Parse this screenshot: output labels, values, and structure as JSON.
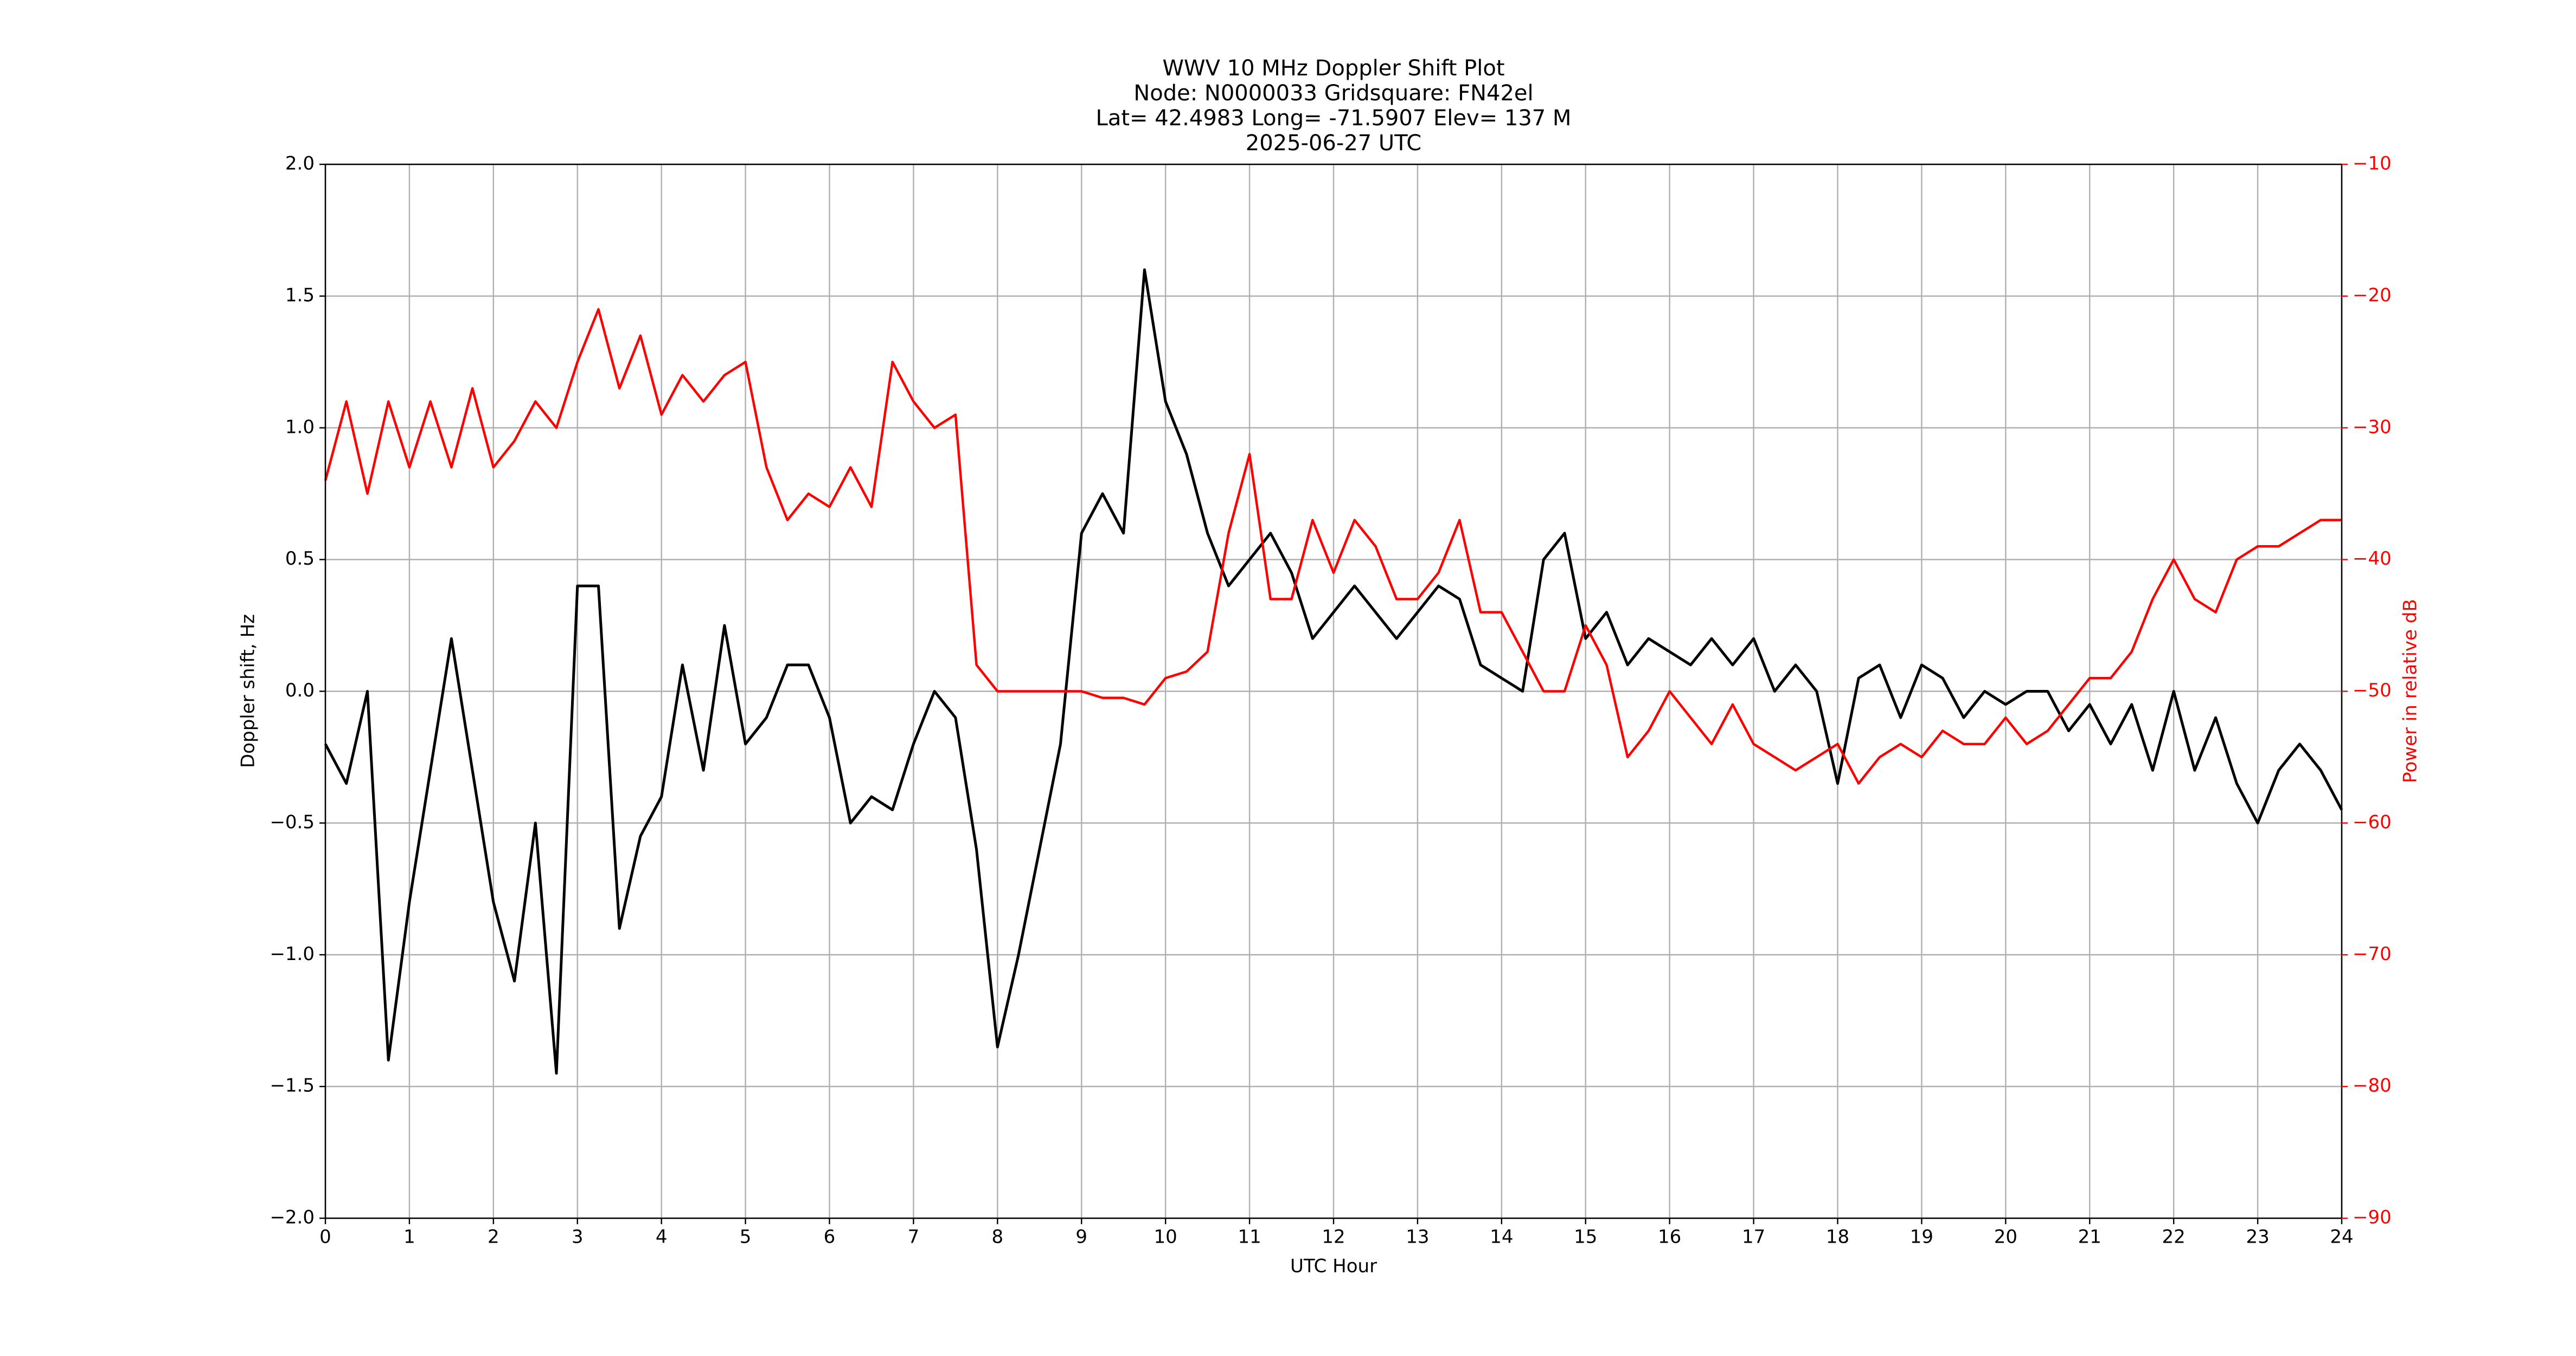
{
  "chart_data": {
    "type": "line",
    "title": [
      "WWV 10 MHz Doppler Shift Plot",
      "Node:  N0000033     Gridsquare:  FN42el",
      "Lat= 42.4983    Long= -71.5907    Elev= 137 M",
      "2025-06-27  UTC"
    ],
    "x_label": "UTC Hour",
    "y_label": "Doppler shift, Hz",
    "y2_label": "Power in relative dB",
    "x": [
      0,
      0.25,
      0.5,
      0.75,
      1,
      1.25,
      1.5,
      1.75,
      2,
      2.25,
      2.5,
      2.75,
      3,
      3.25,
      3.5,
      3.75,
      4,
      4.25,
      4.5,
      4.75,
      5,
      5.25,
      5.5,
      5.75,
      6,
      6.25,
      6.5,
      6.75,
      7,
      7.25,
      7.5,
      7.75,
      8,
      8.25,
      8.5,
      8.75,
      9,
      9.25,
      9.5,
      9.75,
      10,
      10.25,
      10.5,
      10.75,
      11,
      11.25,
      11.5,
      11.75,
      12,
      12.25,
      12.5,
      12.75,
      13,
      13.25,
      13.5,
      13.75,
      14,
      14.25,
      14.5,
      14.75,
      15,
      15.25,
      15.5,
      15.75,
      16,
      16.25,
      16.5,
      16.75,
      17,
      17.25,
      17.5,
      17.75,
      18,
      18.25,
      18.5,
      18.75,
      19,
      19.25,
      19.5,
      19.75,
      20,
      20.25,
      20.5,
      20.75,
      21,
      21.25,
      21.5,
      21.75,
      22,
      22.25,
      22.5,
      22.75,
      23,
      23.25,
      23.5,
      23.75,
      24
    ],
    "series": [
      {
        "name": "Doppler shift",
        "color": "#000000",
        "values": [
          -0.2,
          -0.35,
          0.0,
          -1.4,
          -0.8,
          -0.3,
          0.2,
          -0.3,
          -0.8,
          -1.1,
          -0.5,
          -1.45,
          0.4,
          0.4,
          -0.9,
          -0.55,
          -0.4,
          0.1,
          -0.3,
          0.25,
          -0.2,
          -0.1,
          0.1,
          0.1,
          -0.1,
          -0.5,
          -0.4,
          -0.45,
          -0.2,
          0.0,
          -0.1,
          -0.6,
          -1.35,
          -1.0,
          -0.6,
          -0.2,
          0.6,
          0.75,
          0.6,
          1.6,
          1.1,
          0.9,
          0.6,
          0.4,
          0.5,
          0.6,
          0.45,
          0.2,
          0.3,
          0.4,
          0.3,
          0.2,
          0.3,
          0.4,
          0.35,
          0.1,
          0.05,
          0.0,
          0.5,
          0.6,
          0.2,
          0.3,
          0.1,
          0.2,
          0.15,
          0.1,
          0.2,
          0.1,
          0.2,
          0.0,
          0.1,
          0.0,
          -0.35,
          0.05,
          0.1,
          -0.1,
          0.1,
          0.05,
          -0.1,
          0.0,
          -0.05,
          0.0,
          0.0,
          -0.15,
          -0.05,
          -0.2,
          -0.05,
          -0.3,
          0.0,
          -0.3,
          -0.1,
          -0.35,
          -0.5,
          -0.3,
          -0.2,
          -0.3,
          -0.45
        ]
      },
      {
        "name": "Power",
        "color": "#ff0000",
        "axis": "y2",
        "values": [
          -34,
          -28,
          -35,
          -28,
          -33,
          -28,
          -33,
          -27,
          -33,
          -31,
          -28,
          -30,
          -25,
          -21,
          -27,
          -23,
          -29,
          -26,
          -28,
          -26,
          -25,
          -33,
          -37,
          -35,
          -36,
          -33,
          -36,
          -25,
          -28,
          -30,
          -29,
          -48,
          -50,
          -50,
          -50,
          -50,
          -50,
          -50.5,
          -50.5,
          -51,
          -49,
          -48.5,
          -47,
          -38,
          -32,
          -43,
          -43,
          -37,
          -41,
          -37,
          -39,
          -43,
          -43,
          -41,
          -37,
          -44,
          -44,
          -47,
          -50,
          -50,
          -45,
          -48,
          -55,
          -53,
          -50,
          -52,
          -54,
          -51,
          -54,
          -55,
          -56,
          -55,
          -54,
          -57,
          -55,
          -54,
          -55,
          -53,
          -54,
          -54,
          -52,
          -54,
          -53,
          -51,
          -49,
          -49,
          -47,
          -43,
          -40,
          -43,
          -44,
          -40,
          -39,
          -39,
          -38,
          -37,
          -37
        ]
      }
    ],
    "xlim": [
      0,
      24
    ],
    "xticks": [
      0,
      1,
      2,
      3,
      4,
      5,
      6,
      7,
      8,
      9,
      10,
      11,
      12,
      13,
      14,
      15,
      16,
      17,
      18,
      19,
      20,
      21,
      22,
      23,
      24
    ],
    "ylim": [
      -2,
      2
    ],
    "yticks": [
      {
        "value": -2,
        "label": "−2.0"
      },
      {
        "value": -1.5,
        "label": "−1.5"
      },
      {
        "value": -1,
        "label": "−1.0"
      },
      {
        "value": -0.5,
        "label": "−0.5"
      },
      {
        "value": 0,
        "label": "0.0"
      },
      {
        "value": 0.5,
        "label": "0.5"
      },
      {
        "value": 1,
        "label": "1.0"
      },
      {
        "value": 1.5,
        "label": "1.5"
      },
      {
        "value": 2,
        "label": "2.0"
      }
    ],
    "y2lim": [
      -90,
      -10
    ],
    "y2ticks": [
      {
        "value": -90,
        "label": "−90"
      },
      {
        "value": -80,
        "label": "−80"
      },
      {
        "value": -70,
        "label": "−70"
      },
      {
        "value": -60,
        "label": "−60"
      },
      {
        "value": -50,
        "label": "−50"
      },
      {
        "value": -40,
        "label": "−40"
      },
      {
        "value": -30,
        "label": "−30"
      },
      {
        "value": -20,
        "label": "−20"
      },
      {
        "value": -10,
        "label": "−10"
      }
    ],
    "y2_color": "#ff0000",
    "grid": true
  }
}
